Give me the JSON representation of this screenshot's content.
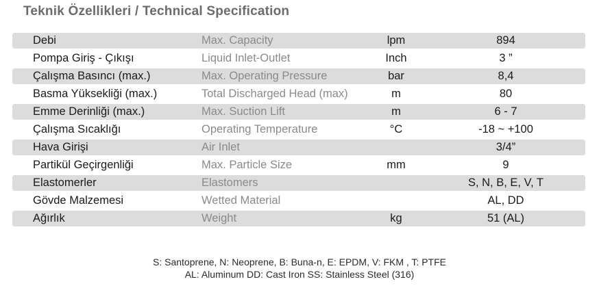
{
  "title": "Teknik Özellikleri / Technical Specification",
  "rows": [
    {
      "tr": "Debi",
      "en": "Max. Capacity",
      "unit": "lpm",
      "value": "894"
    },
    {
      "tr": "Pompa Giriş - Çıkışı",
      "en": "Liquid Inlet-Outlet",
      "unit": "Inch",
      "value": "3 ”"
    },
    {
      "tr": "Çalışma Basıncı (max.)",
      "en": "Max. Operating Pressure",
      "unit": "bar",
      "value": "8,4"
    },
    {
      "tr": "Basma Yüksekliği (max.)",
      "en": "Total Discharged Head (max)",
      "unit": "m",
      "value": "80"
    },
    {
      "tr": "Emme Derinliği (max.)",
      "en": "Max. Suction Lift",
      "unit": "m",
      "value": "6 - 7"
    },
    {
      "tr": "Çalışma Sıcaklığı",
      "en": "Operating Temperature",
      "unit": "°C",
      "value": "-18 ~ +100"
    },
    {
      "tr": "Hava Girişi",
      "en": "Air Inlet",
      "unit": "",
      "value": "3/4”"
    },
    {
      "tr": "Partikül Geçirgenliği",
      "en": "Max. Particle Size",
      "unit": "mm",
      "value": "9"
    },
    {
      "tr": "Elastomerler",
      "en": "Elastomers",
      "unit": "",
      "value": "S, N, B, E, V, T"
    },
    {
      "tr": "Gövde Malzemesi",
      "en": "Wetted Material",
      "unit": "",
      "value": "AL, DD"
    },
    {
      "tr": "Ağırlık",
      "en": "Weight",
      "unit": "kg",
      "value": "51 (AL)"
    }
  ],
  "notes": {
    "line1": "S: Santoprene, N: Neoprene, B: Buna-n, E: EPDM, V: FKM , T: PTFE",
    "line2": "AL: Aluminum  DD: Cast Iron  SS: Stainless Steel (316)"
  },
  "colors": {
    "row_shade": "#dcdcdc",
    "title": "#6b6b6b",
    "english_text": "#8a8a8a"
  }
}
